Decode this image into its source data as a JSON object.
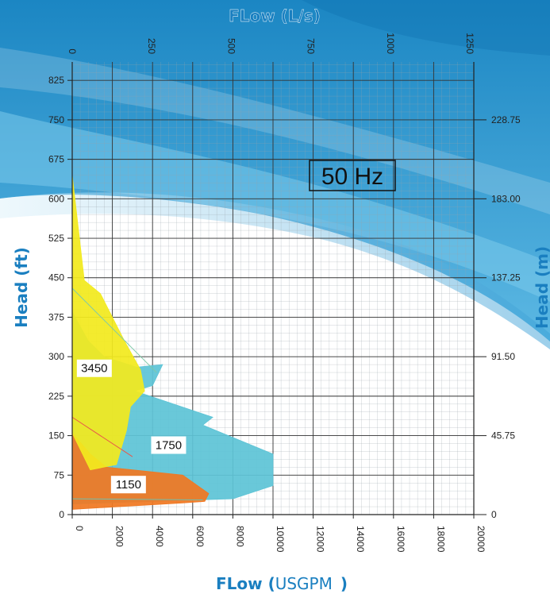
{
  "chart_data": {
    "type": "area",
    "frequency_label": "50 Hz",
    "title_top": "FLow (L/s)",
    "xlabel_bold": "FLow (",
    "xlabel_unit": "USGPM",
    "xlabel_close": ")",
    "ylabel_left": "Head (ft)",
    "ylabel_right": "Head (m)",
    "grid": true,
    "x_usgpm": {
      "range": [
        0,
        20000
      ],
      "ticks": [
        "0",
        "2000",
        "4000",
        "6000",
        "8000",
        "10000",
        "12000",
        "14000",
        "16000",
        "18000",
        "20000"
      ]
    },
    "x_ls": {
      "range": [
        0,
        1262
      ],
      "ticks": [
        {
          "v": 0,
          "label": "0"
        },
        {
          "v": 250,
          "label": "250"
        },
        {
          "v": 500,
          "label": "500"
        },
        {
          "v": 750,
          "label": "750"
        },
        {
          "v": 1000,
          "label": "1000"
        },
        {
          "v": 1250,
          "label": "1250"
        }
      ]
    },
    "y_ft": {
      "range": [
        0,
        860
      ],
      "ticks": [
        {
          "v": 0,
          "label": "0"
        },
        {
          "v": 75,
          "label": "75"
        },
        {
          "v": 150,
          "label": "150"
        },
        {
          "v": 225,
          "label": "225"
        },
        {
          "v": 300,
          "label": "300"
        },
        {
          "v": 375,
          "label": "375"
        },
        {
          "v": 450,
          "label": "450"
        },
        {
          "v": 525,
          "label": "525"
        },
        {
          "v": 600,
          "label": "600"
        },
        {
          "v": 675,
          "label": "675"
        },
        {
          "v": 750,
          "label": "750"
        },
        {
          "v": 825,
          "label": "825"
        }
      ]
    },
    "y_m": {
      "ticks": [
        {
          "v": 0,
          "label": "0"
        },
        {
          "v": 45.75,
          "label": "45.75"
        },
        {
          "v": 91.5,
          "label": "91.50"
        },
        {
          "v": 137.25,
          "label": "137.25"
        },
        {
          "v": 183,
          "label": "183.00"
        },
        {
          "v": 228.75,
          "label": "228.75"
        }
      ]
    },
    "series": [
      {
        "name": "1750",
        "color": "#5ec4d6",
        "polygon": [
          [
            0,
            385
          ],
          [
            800,
            330
          ],
          [
            1600,
            300
          ],
          [
            3200,
            280
          ],
          [
            4500,
            285
          ],
          [
            4000,
            245
          ],
          [
            3100,
            235
          ],
          [
            7000,
            185
          ],
          [
            6500,
            170
          ],
          [
            10000,
            115
          ],
          [
            10000,
            55
          ],
          [
            8000,
            30
          ],
          [
            0,
            20
          ]
        ]
      },
      {
        "name": "1150",
        "color": "#f07822",
        "polygon": [
          [
            0,
            155
          ],
          [
            900,
            115
          ],
          [
            1700,
            90
          ],
          [
            3000,
            85
          ],
          [
            5500,
            75
          ],
          [
            6800,
            40
          ],
          [
            6600,
            25
          ],
          [
            5500,
            22
          ],
          [
            0,
            10
          ]
        ]
      },
      {
        "name": "3450",
        "color": "#f2ea1e",
        "polygon": [
          [
            0,
            645
          ],
          [
            600,
            445
          ],
          [
            1400,
            420
          ],
          [
            2600,
            330
          ],
          [
            3400,
            275
          ],
          [
            3600,
            235
          ],
          [
            2900,
            205
          ],
          [
            2700,
            160
          ],
          [
            2200,
            95
          ],
          [
            900,
            85
          ],
          [
            0,
            155
          ]
        ]
      }
    ],
    "series_labels": [
      {
        "text": "3450",
        "x": 1100,
        "y": 278
      },
      {
        "text": "1750",
        "x": 4800,
        "y": 132
      },
      {
        "text": "1150",
        "x": 2800,
        "y": 57
      }
    ],
    "colors": {
      "axis_title": "#1a7fc0",
      "band_dark": "#1b86c3",
      "band_light": "#8fd0ec"
    }
  }
}
